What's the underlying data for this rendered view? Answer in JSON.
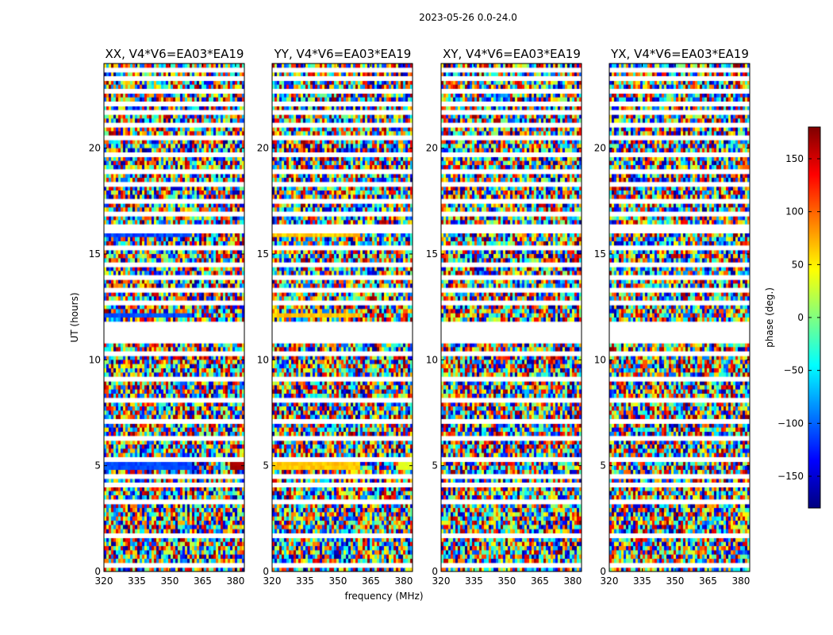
{
  "chart_data": {
    "type": "heatmap",
    "title": "2023-05-26 0.0-24.0",
    "xlabel": "frequency (MHz)",
    "ylabel": "UT (hours)",
    "xlim": [
      320,
      384
    ],
    "ylim": [
      0,
      24
    ],
    "x_ticks": [
      320,
      335,
      350,
      365,
      380
    ],
    "y_ticks": [
      0,
      5,
      10,
      15,
      20
    ],
    "colorbar": {
      "label": "phase (deg.)",
      "range": [
        -180,
        180
      ],
      "ticks": [
        -150,
        -100,
        -50,
        0,
        50,
        100,
        150
      ],
      "colormap": [
        "#00007f",
        "#0000ff",
        "#0080ff",
        "#00ffff",
        "#80ff80",
        "#ffff00",
        "#ff8000",
        "#ff0000",
        "#7f0000"
      ]
    },
    "panels": [
      {
        "title": "XX, V4*V6=EA03*EA19",
        "coherent_phase": {
          "low_band": -110,
          "edge_band": 165
        }
      },
      {
        "title": "YY, V4*V6=EA03*EA19",
        "coherent_phase": {
          "low_band": 65,
          "edge_band": 35
        }
      },
      {
        "title": "XY, V4*V6=EA03*EA19",
        "coherent_phase": null
      },
      {
        "title": "YX, V4*V6=EA03*EA19",
        "coherent_phase": null
      }
    ],
    "flagged_ut_ranges": [
      [
        0.3,
        0.4
      ],
      [
        1.0,
        1.1
      ],
      [
        1.6,
        1.7
      ],
      [
        2.55,
        2.6
      ],
      [
        3.3,
        3.45
      ],
      [
        3.55,
        3.65
      ],
      [
        4.1,
        4.2
      ],
      [
        4.5,
        4.55
      ],
      [
        5.3,
        5.4
      ],
      [
        5.8,
        5.85
      ],
      [
        6.2,
        6.4
      ],
      [
        6.55,
        6.6
      ],
      [
        7.1,
        7.15
      ],
      [
        8.1,
        8.2
      ],
      [
        8.55,
        8.6
      ],
      [
        9.0,
        9.1
      ],
      [
        9.6,
        9.65
      ],
      [
        10.2,
        10.3
      ],
      [
        10.8,
        11.8
      ],
      [
        12.7,
        12.8
      ],
      [
        13.2,
        13.3
      ],
      [
        13.8,
        13.95
      ],
      [
        14.5,
        14.6
      ],
      [
        15.2,
        15.3
      ],
      [
        15.55,
        15.6
      ],
      [
        16.1,
        16.3
      ],
      [
        16.8,
        16.9
      ],
      [
        17.5,
        17.6
      ],
      [
        18.2,
        18.3
      ],
      [
        18.8,
        18.9
      ],
      [
        19.6,
        19.7
      ],
      [
        20.5,
        20.6
      ],
      [
        21.0,
        21.1
      ],
      [
        21.6,
        21.7
      ],
      [
        22.1,
        22.2
      ],
      [
        22.6,
        22.7
      ],
      [
        23.2,
        23.3
      ],
      [
        23.6,
        23.7
      ]
    ]
  }
}
